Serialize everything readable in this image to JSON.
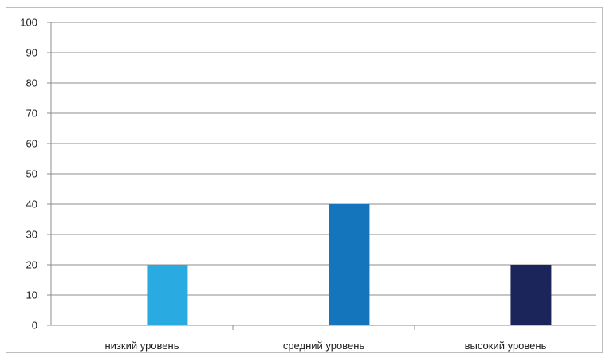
{
  "chart_data": {
    "type": "bar",
    "categories": [
      "низкий уровень",
      "средний уровень",
      "высокий уровень"
    ],
    "series": [
      {
        "values": [
          0,
          0,
          0
        ],
        "color": "#ffffff"
      },
      {
        "values": [
          20,
          40,
          20
        ],
        "colors": [
          "#29abe2",
          "#1474bc",
          "#1b255a"
        ]
      }
    ],
    "ylim": [
      0,
      100
    ],
    "yticks": [
      0,
      10,
      20,
      30,
      40,
      50,
      60,
      70,
      80,
      90,
      100
    ],
    "grid": true,
    "legend": "none",
    "title": "",
    "xlabel": "",
    "ylabel": ""
  }
}
